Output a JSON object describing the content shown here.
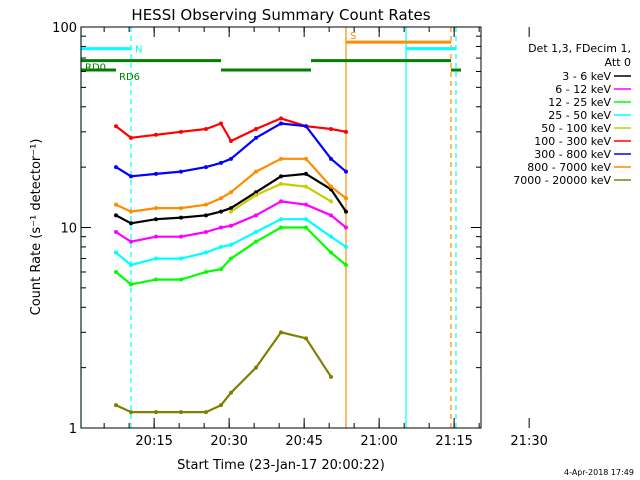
{
  "chart_data": {
    "type": "line",
    "title": "HESSI Observing Summary Count Rates",
    "ylabel": "Count Rate (s⁻¹ detector⁻¹)",
    "xlabel": "Start Time (23-Jan-17 20:00:22)",
    "yscale": "log",
    "ylim": [
      1,
      100
    ],
    "xlim_minutes": [
      0,
      80
    ],
    "x_ticks": [
      "20:15",
      "20:30",
      "20:45",
      "21:00",
      "21:15",
      "21:30"
    ],
    "y_ticks": [
      "1",
      "10",
      "100"
    ],
    "legend_header": [
      "Det 1,3, FDecim 1,",
      "Att 0"
    ],
    "timestamp": "4-Apr-2018 17:49",
    "series": [
      {
        "name": "3 - 6 keV",
        "color": "#000000",
        "x": [
          7,
          10,
          15,
          20,
          25,
          28,
          30,
          35,
          40,
          45,
          50,
          53
        ],
        "values": [
          11.5,
          10.5,
          11,
          11.2,
          11.5,
          12,
          12.5,
          15,
          18,
          18.5,
          15.5,
          12
        ]
      },
      {
        "name": "6 - 12 keV",
        "color": "#ff00ff",
        "x": [
          7,
          10,
          15,
          20,
          25,
          28,
          30,
          35,
          40,
          45,
          50,
          53
        ],
        "values": [
          9.5,
          8.5,
          9,
          9,
          9.5,
          10,
          10.2,
          11.5,
          13.5,
          13,
          11.5,
          10
        ]
      },
      {
        "name": "12 - 25 keV",
        "color": "#00ff00",
        "x": [
          7,
          10,
          15,
          20,
          25,
          28,
          30,
          35,
          40,
          45,
          50,
          53
        ],
        "values": [
          6,
          5.2,
          5.5,
          5.5,
          6,
          6.2,
          7,
          8.5,
          10,
          10,
          7.5,
          6.5
        ]
      },
      {
        "name": "25 - 50 keV",
        "color": "#00ffff",
        "x": [
          7,
          10,
          15,
          20,
          25,
          28,
          30,
          35,
          40,
          45,
          50,
          53
        ],
        "values": [
          7.5,
          6.5,
          7,
          7,
          7.5,
          8,
          8.2,
          9.5,
          11,
          11,
          9,
          8
        ]
      },
      {
        "name": "50 - 100 keV",
        "color": "#cccc00",
        "x": [
          30,
          35,
          40,
          45,
          50
        ],
        "values": [
          12,
          14.5,
          16.5,
          16,
          13.5
        ]
      },
      {
        "name": "100 - 300 keV",
        "color": "#ff0000",
        "x": [
          7,
          10,
          15,
          20,
          25,
          28,
          30,
          35,
          40,
          45,
          50,
          53
        ],
        "values": [
          32,
          28,
          29,
          30,
          31,
          33,
          27,
          31,
          35,
          32,
          31,
          30
        ]
      },
      {
        "name": "300 - 800 keV",
        "color": "#0000ff",
        "x": [
          7,
          10,
          15,
          20,
          25,
          28,
          30,
          35,
          40,
          45,
          50,
          53
        ],
        "values": [
          20,
          18,
          18.5,
          19,
          20,
          21,
          22,
          28,
          33,
          32,
          22,
          19
        ]
      },
      {
        "name": "800 - 7000 keV",
        "color": "#ff8c00",
        "x": [
          7,
          10,
          15,
          20,
          25,
          28,
          30,
          35,
          40,
          45,
          50,
          53
        ],
        "values": [
          13,
          12,
          12.5,
          12.5,
          13,
          14,
          15,
          19,
          22,
          22,
          16,
          14
        ]
      },
      {
        "name": "7000 - 20000 keV",
        "color": "#808000",
        "x": [
          7,
          10,
          15,
          20,
          25,
          28,
          30,
          35,
          40,
          45,
          50
        ],
        "values": [
          1.3,
          1.2,
          1.2,
          1.2,
          1.2,
          1.3,
          1.5,
          2.0,
          3.0,
          2.8,
          1.8
        ]
      }
    ],
    "flag_bars": [
      {
        "label": "N",
        "color": "#00ffff",
        "x": [
          0,
          10
        ],
        "level": 78
      },
      {
        "label": "",
        "color": "#00ffff",
        "x": [
          65,
          75
        ],
        "level": 78
      },
      {
        "label": "S",
        "color": "#ff8c00",
        "x": [
          53,
          74
        ],
        "level": 84
      },
      {
        "label": "RD0",
        "color": "#008000",
        "x": [
          0,
          28
        ],
        "level": 68
      },
      {
        "label": "",
        "color": "#008000",
        "x": [
          46,
          74
        ],
        "level": 68
      },
      {
        "label": "RD6",
        "color": "#008000",
        "x": [
          0,
          7
        ],
        "level": 61
      },
      {
        "label": "",
        "color": "#008000",
        "x": [
          28,
          46
        ],
        "level": 61
      },
      {
        "label": "",
        "color": "#008000",
        "x": [
          74,
          76
        ],
        "level": 61
      }
    ],
    "vertical_lines": [
      {
        "x": 0,
        "color": "#00ffff",
        "style": "solid"
      },
      {
        "x": 10,
        "color": "#00ffff",
        "style": "dashed"
      },
      {
        "x": 65,
        "color": "#00ffff",
        "style": "solid"
      },
      {
        "x": 75,
        "color": "#00ffff",
        "style": "dashed"
      },
      {
        "x": 53,
        "color": "#ff8c00",
        "style": "solid"
      },
      {
        "x": 74,
        "color": "#ff8c00",
        "style": "dashed"
      }
    ]
  }
}
